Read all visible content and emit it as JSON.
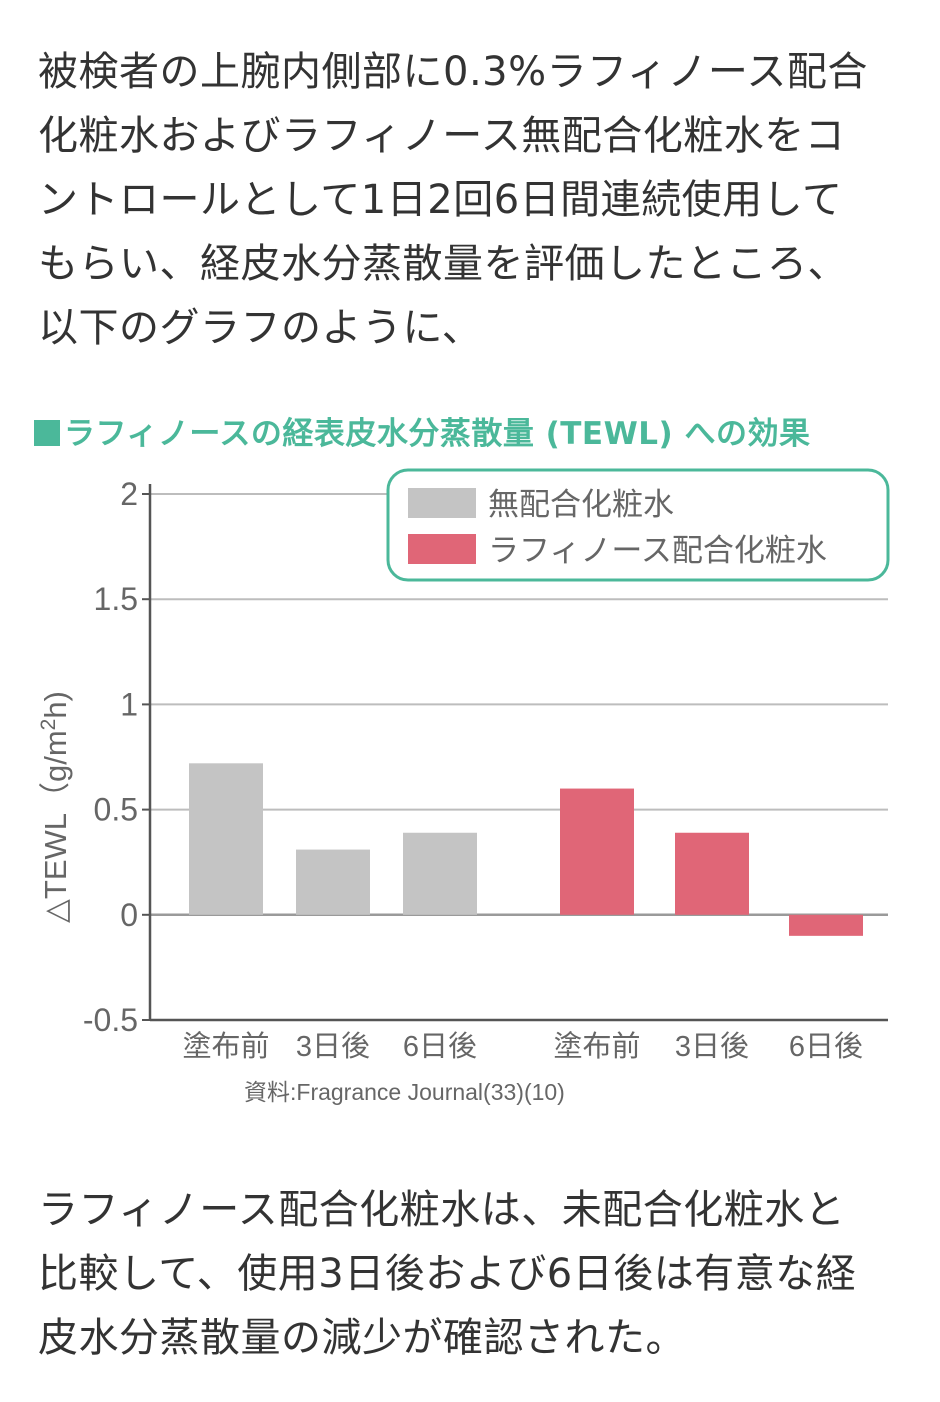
{
  "intro": {
    "lines": [
      "被検者の上腕内側部に0.3%ラフィノース配合",
      "化粧水およびラフィノース無配合化粧水をコ",
      "ントロールとして1日2回6日間連続使用して",
      "もらい、経皮水分蒸散量を評価したところ、",
      "以下のグラフのように、"
    ]
  },
  "figure": {
    "title": "ラフィノースの経表皮水分蒸散量 (TEWL) への効果",
    "source": "資料:Fragrance Journal(33)(10)"
  },
  "chart_data": {
    "type": "bar",
    "title": "ラフィノースの経表皮水分蒸散量 (TEWL) への効果",
    "ylabel": "△TEWL（g/m2h)",
    "ylabel_main": "△TEWL（g/m",
    "ylabel_sup": "2",
    "ylabel_tail": "h)",
    "ylim": [
      -0.5,
      2
    ],
    "yticks": [
      -0.5,
      0,
      0.5,
      1,
      1.5,
      2
    ],
    "ytick_labels": [
      "-0.5",
      "0",
      "0.5",
      "1",
      "1.5",
      "2"
    ],
    "grid": true,
    "legend_position": "top-right",
    "series": [
      {
        "name": "無配合化粧水",
        "color": "#c4c4c4",
        "categories": [
          "塗布前",
          "3日後",
          "6日後"
        ],
        "values": [
          0.72,
          0.31,
          0.39
        ]
      },
      {
        "name": "ラフィノース配合化粧水",
        "color": "#e06677",
        "categories": [
          "塗布前",
          "3日後",
          "6日後"
        ],
        "values": [
          0.6,
          0.39,
          -0.1
        ]
      }
    ],
    "legend_border_color": "#4bb89a",
    "axis_color": "#555555",
    "grid_color": "#bdbdbd"
  },
  "outro": {
    "lines": [
      "ラフィノース配合化粧水は、未配合化粧水と",
      "比較して、使用3日後および6日後は有意な経",
      "皮水分蒸散量の減少が確認された。"
    ]
  }
}
